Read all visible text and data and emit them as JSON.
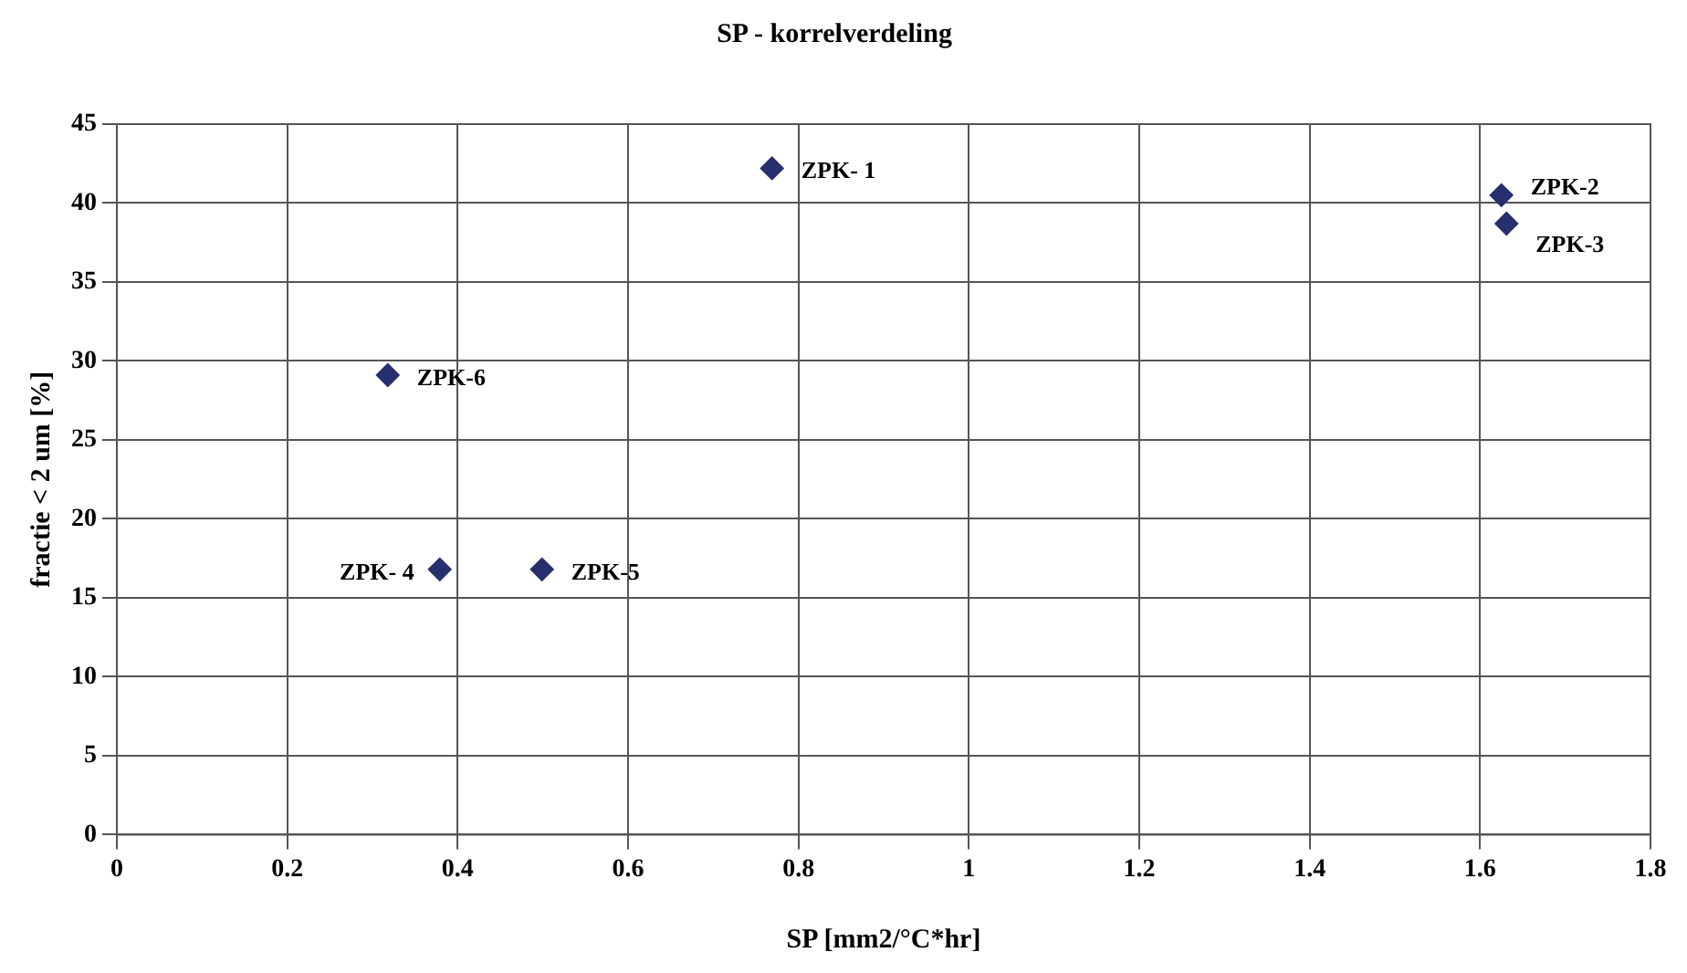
{
  "chart_data": {
    "type": "scatter",
    "title": "SP - korrelverdeling",
    "xlabel": "SP [mm2/°C*hr]",
    "ylabel": "fractie < 2 um [%]",
    "x": [
      0.769,
      1.625,
      1.631,
      0.379,
      0.499,
      0.318
    ],
    "series": [
      {
        "color": "#27306e",
        "values": [
          42.2,
          40.5,
          38.7,
          16.8,
          16.8,
          29.1
        ]
      }
    ],
    "annotations": [
      {
        "text": "ZPK- 1",
        "x": 0.769,
        "y": 42.2
      },
      {
        "text": "ZPK-2",
        "x": 1.625,
        "y": 40.5
      },
      {
        "text": "ZPK-3",
        "x": 1.631,
        "y": 38.7
      },
      {
        "text": "ZPK- 4",
        "x": 0.379,
        "y": 16.8
      },
      {
        "text": "ZPK-5",
        "x": 0.499,
        "y": 16.8
      },
      {
        "text": "ZPK-6",
        "x": 0.318,
        "y": 29.1
      }
    ],
    "xlim": [
      0,
      1.8
    ],
    "xticks": [
      0,
      0.2,
      0.4,
      0.6,
      0.8,
      1,
      1.2,
      1.4,
      1.6,
      1.8
    ],
    "ylim": [
      0,
      45
    ],
    "yticks": [
      0,
      5,
      10,
      15,
      20,
      25,
      30,
      35,
      40,
      45
    ],
    "grid": true,
    "marker": "diamond",
    "legend": false
  }
}
